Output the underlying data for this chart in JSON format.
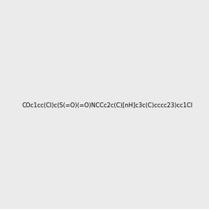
{
  "smiles": "COc1cc(Cl)c(S(=O)(=O)NCCc2c(C)[nH]c3c(C)cccc23)cc1Cl",
  "title": "",
  "bg_color": "#ebebeb",
  "img_size": [
    300,
    300
  ],
  "atom_colors": {
    "N": "#0000ff",
    "O": "#ff0000",
    "S": "#cccc00",
    "Cl": "#00cc00",
    "C": "#000000",
    "H": "#808080"
  }
}
